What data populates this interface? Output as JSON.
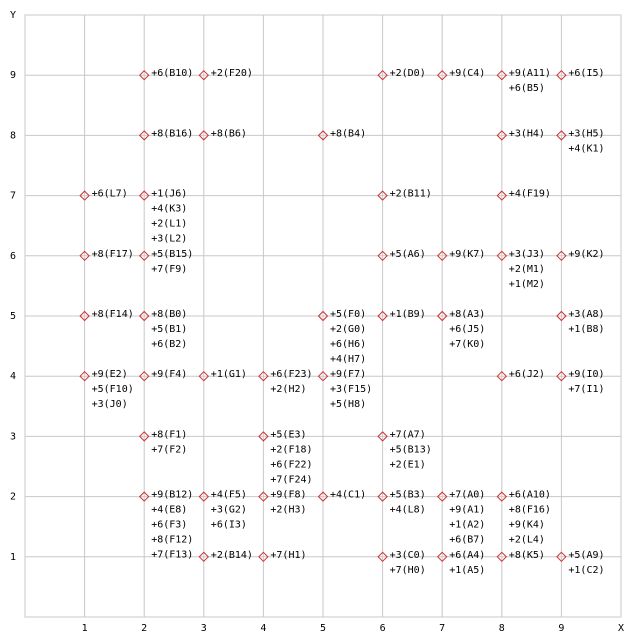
{
  "chart_data": {
    "type": "scatter",
    "x_label": "X",
    "y_label": "Y",
    "xlim": [
      0,
      10
    ],
    "ylim": [
      0,
      10
    ],
    "xticks": [
      1,
      2,
      3,
      4,
      5,
      6,
      7,
      8,
      9
    ],
    "yticks": [
      1,
      2,
      3,
      4,
      5,
      6,
      7,
      8,
      9
    ],
    "grid": true,
    "marker_color": "#d03030",
    "series": [
      {
        "x": [
          2,
          3,
          6,
          7,
          8,
          9,
          2,
          3,
          5,
          8,
          9,
          1,
          2,
          6,
          8,
          1,
          2,
          6,
          7,
          8,
          9,
          1,
          2,
          5,
          6,
          7,
          9,
          1,
          2,
          3,
          4,
          5,
          8,
          9,
          2,
          4,
          6,
          2,
          3,
          4,
          5,
          6,
          7,
          8,
          3,
          4,
          6,
          7,
          8,
          9
        ],
        "values": [
          9,
          9,
          9,
          9,
          9,
          9,
          8,
          8,
          8,
          8,
          8,
          7,
          7,
          7,
          7,
          6,
          6,
          6,
          6,
          6,
          6,
          5,
          5,
          5,
          5,
          5,
          5,
          4,
          4,
          4,
          4,
          4,
          4,
          4,
          3,
          3,
          3,
          2,
          2,
          2,
          2,
          2,
          2,
          2,
          1,
          1,
          1,
          1,
          1,
          1
        ],
        "labels": [
          [
            "+6(B10)"
          ],
          [
            "+2(F20)"
          ],
          [
            "+2(D0)"
          ],
          [
            "+9(C4)"
          ],
          [
            "+9(A11)",
            "+6(B5)"
          ],
          [
            "+6(I5)"
          ],
          [
            "+8(B16)"
          ],
          [
            "+8(B6)"
          ],
          [
            "+8(B4)"
          ],
          [
            "+3(H4)"
          ],
          [
            "+3(H5)",
            "+4(K1)"
          ],
          [
            "+6(L7)"
          ],
          [
            "+1(J6)",
            "+4(K3)",
            "+2(L1)",
            "+3(L2)"
          ],
          [
            "+2(B11)"
          ],
          [
            "+4(F19)"
          ],
          [
            "+8(F17)"
          ],
          [
            "+5(B15)",
            "+7(F9)"
          ],
          [
            "+5(A6)"
          ],
          [
            "+9(K7)"
          ],
          [
            "+3(J3)",
            "+2(M1)",
            "+1(M2)"
          ],
          [
            "+9(K2)"
          ],
          [
            "+8(F14)"
          ],
          [
            "+8(B0)",
            "+5(B1)",
            "+6(B2)"
          ],
          [
            "+5(F0)",
            "+2(G0)",
            "+6(H6)",
            "+4(H7)"
          ],
          [
            "+1(B9)"
          ],
          [
            "+8(A3)",
            "+6(J5)",
            "+7(K0)"
          ],
          [
            "+3(A8)",
            "+1(B8)"
          ],
          [
            "+9(E2)",
            "+5(F10)",
            "+3(J0)"
          ],
          [
            "+9(F4)"
          ],
          [
            "+1(G1)"
          ],
          [
            "+6(F23)",
            "+2(H2)"
          ],
          [
            "+9(F7)",
            "+3(F15)",
            "+5(H8)"
          ],
          [
            "+6(J2)"
          ],
          [
            "+9(I0)",
            "+7(I1)"
          ],
          [
            "+8(F1)",
            "+7(F2)"
          ],
          [
            "+5(E3)",
            "+2(F18)",
            "+6(F22)",
            "+7(F24)"
          ],
          [
            "+7(A7)",
            "+5(B13)",
            "+2(E1)"
          ],
          [
            "+9(B12)",
            "+4(E8)",
            "+6(F3)",
            "+8(F12)",
            "+7(F13)"
          ],
          [
            "+4(F5)",
            "+3(G2)",
            "+6(I3)"
          ],
          [
            "+9(F8)",
            "+2(H3)"
          ],
          [
            "+4(C1)"
          ],
          [
            "+5(B3)",
            "+4(L8)"
          ],
          [
            "+7(A0)",
            "+9(A1)",
            "+1(A2)",
            "+6(B7)"
          ],
          [
            "+6(A10)",
            "+8(F16)",
            "+9(K4)",
            "+2(L4)"
          ],
          [
            "+2(B14)"
          ],
          [
            "+7(H1)"
          ],
          [
            "+3(C0)",
            "+7(H0)"
          ],
          [
            "+6(A4)",
            "+1(A5)"
          ],
          [
            "+8(K5)"
          ],
          [
            "+5(A9)",
            "+1(C2)"
          ]
        ]
      }
    ]
  }
}
